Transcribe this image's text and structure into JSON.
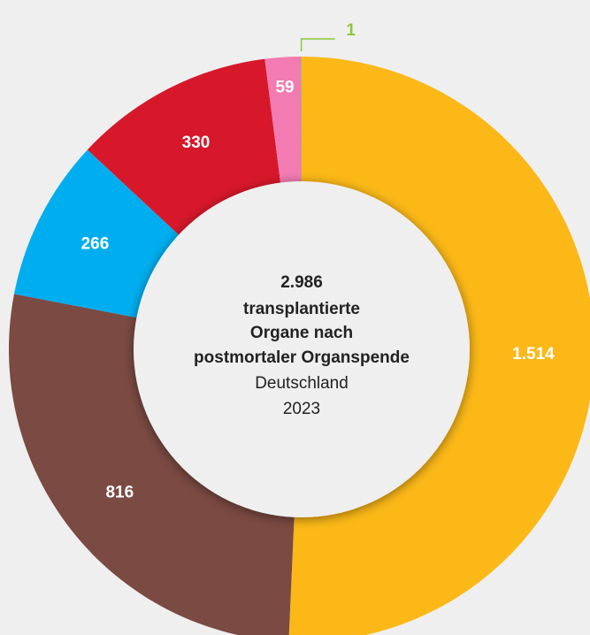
{
  "chart_data": {
    "type": "donut",
    "total": 2986,
    "total_label": "2.986",
    "center_lines": [
      "transplantierte",
      "Organe nach",
      "postmortaler Organspende"
    ],
    "location": "Deutschland",
    "year": "2023",
    "values": [
      1514,
      816,
      266,
      330,
      59,
      1
    ],
    "value_labels": [
      "1.514",
      "816",
      "266",
      "330",
      "59",
      "1"
    ],
    "colors": [
      "#fbb817",
      "#7b4a42",
      "#00aeef",
      "#d7182a",
      "#f27bb1",
      "#8dc63f"
    ]
  }
}
